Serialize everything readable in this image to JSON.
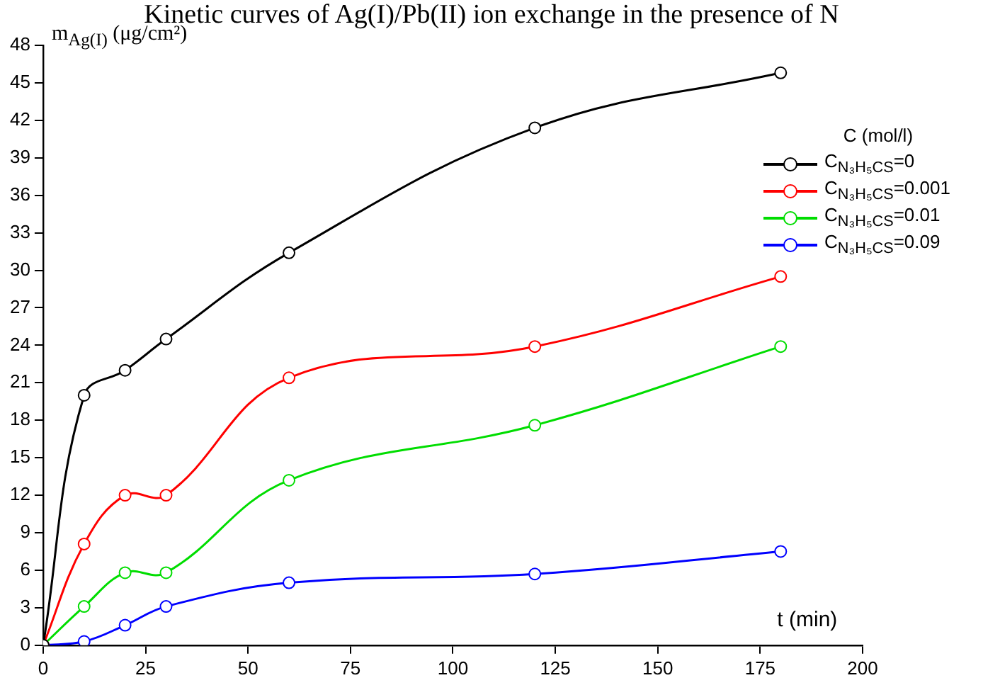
{
  "chart_data": {
    "type": "line",
    "title": "Kinetic curves of Ag(I)/Pb(II) ion exchange in the presence of N",
    "xlabel": "t (min)",
    "ylabel": "m$_{Ag(I)}$ (μg/cm²)",
    "legend_title": "C (mol/l)",
    "legend": "top right",
    "grid": false,
    "marker": "circle",
    "line_style": "solid",
    "x": [
      0,
      10,
      20,
      30,
      60,
      120,
      180
    ],
    "xlim": [
      0,
      200
    ],
    "xticks": [
      0,
      25,
      50,
      75,
      100,
      125,
      150,
      175,
      200
    ],
    "ylim": [
      0,
      48
    ],
    "yticks": [
      0,
      3,
      6,
      9,
      12,
      15,
      18,
      21,
      24,
      27,
      30,
      33,
      36,
      39,
      42,
      45,
      48
    ],
    "series": [
      {
        "name": "C$_{N₃H₅CS}$=0",
        "color": "#000000",
        "values": [
          0,
          20,
          22,
          24.5,
          31.4,
          41.4,
          45.8
        ]
      },
      {
        "name": "C$_{N₃H₅CS}$=0.001",
        "color": "#ff0000",
        "values": [
          0,
          8.1,
          12,
          12,
          21.4,
          23.9,
          29.5
        ]
      },
      {
        "name": "C$_{N₃H₅CS}$=0.01",
        "color": "#00dd00",
        "values": [
          0,
          3.1,
          5.8,
          5.8,
          13.2,
          17.6,
          23.9
        ]
      },
      {
        "name": "C$_{N₃H₅CS}$=0.09",
        "color": "#0000ff",
        "values": [
          0,
          0.3,
          1.6,
          3.1,
          5,
          5.7,
          7.5
        ]
      }
    ]
  }
}
